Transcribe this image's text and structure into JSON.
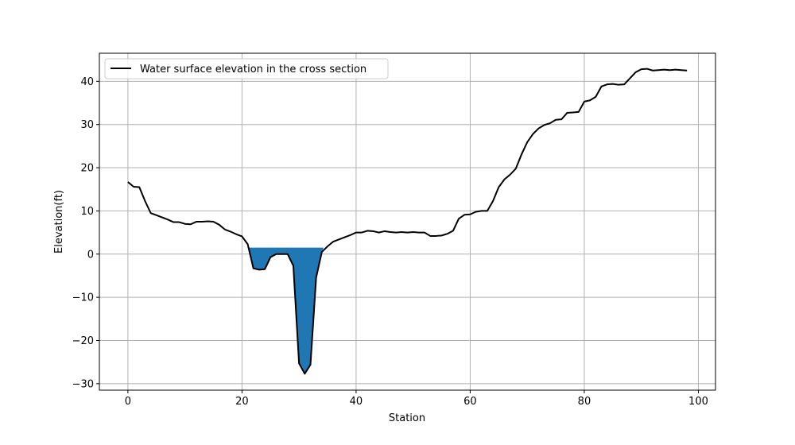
{
  "chart_data": {
    "type": "line",
    "xlabel": "Station",
    "ylabel": "Elevation(ft)",
    "xlim": [
      -5,
      103
    ],
    "ylim": [
      -31.5,
      46.5
    ],
    "xticks": [
      0,
      20,
      40,
      60,
      80,
      100
    ],
    "yticks": [
      -30,
      -20,
      -10,
      0,
      10,
      20,
      30,
      40
    ],
    "grid": true,
    "legend_position": "top-left",
    "series": [
      {
        "name": "Water surface elevation in the cross section",
        "color": "#000000",
        "x": [
          0,
          1,
          2,
          3,
          4,
          5,
          6,
          7,
          8,
          9,
          10,
          11,
          12,
          13,
          14,
          15,
          16,
          17,
          18,
          19,
          20,
          21,
          22,
          23,
          24,
          25,
          26,
          27,
          28,
          29,
          30,
          31,
          32,
          33,
          34,
          35,
          36,
          37,
          38,
          39,
          40,
          41,
          42,
          43,
          44,
          45,
          46,
          47,
          48,
          49,
          50,
          51,
          52,
          53,
          54,
          55,
          56,
          57,
          58,
          59,
          60,
          61,
          62,
          63,
          64,
          65,
          66,
          67,
          68,
          69,
          70,
          71,
          72,
          73,
          74,
          75,
          76,
          77,
          78,
          79,
          80,
          81,
          82,
          83,
          84,
          85,
          86,
          87,
          88,
          89,
          90,
          91,
          92,
          93,
          94,
          95,
          96,
          97,
          98
        ],
        "y": [
          16.7,
          15.6,
          15.5,
          12.3,
          9.5,
          9.0,
          8.5,
          8.0,
          7.4,
          7.4,
          7.0,
          6.9,
          7.5,
          7.5,
          7.6,
          7.5,
          6.8,
          5.7,
          5.2,
          4.6,
          4.1,
          2.3,
          -3.3,
          -3.6,
          -3.5,
          -0.7,
          0.0,
          0.0,
          0.0,
          -2.7,
          -25.3,
          -27.7,
          -25.6,
          -5.4,
          0.5,
          1.8,
          2.9,
          3.4,
          3.9,
          4.4,
          5.0,
          5.0,
          5.4,
          5.3,
          5.0,
          5.3,
          5.1,
          5.0,
          5.1,
          5.0,
          5.1,
          5.0,
          5.0,
          4.2,
          4.2,
          4.3,
          4.7,
          5.4,
          8.2,
          9.1,
          9.2,
          9.8,
          10.0,
          10.0,
          12.3,
          15.5,
          17.3,
          18.4,
          19.8,
          23.1,
          25.9,
          27.8,
          29.1,
          29.9,
          30.3,
          31.1,
          31.2,
          32.7,
          32.8,
          32.9,
          35.3,
          35.6,
          36.4,
          38.8,
          39.3,
          39.4,
          39.2,
          39.3,
          40.7,
          42.1,
          42.8,
          42.9,
          42.5,
          42.6,
          42.7,
          42.6,
          42.7,
          42.6,
          42.5
        ]
      }
    ],
    "water": {
      "surface_elevation": 1.5,
      "x_start": 21.2,
      "x_end": 34.3,
      "color": "#1f77b4"
    }
  }
}
